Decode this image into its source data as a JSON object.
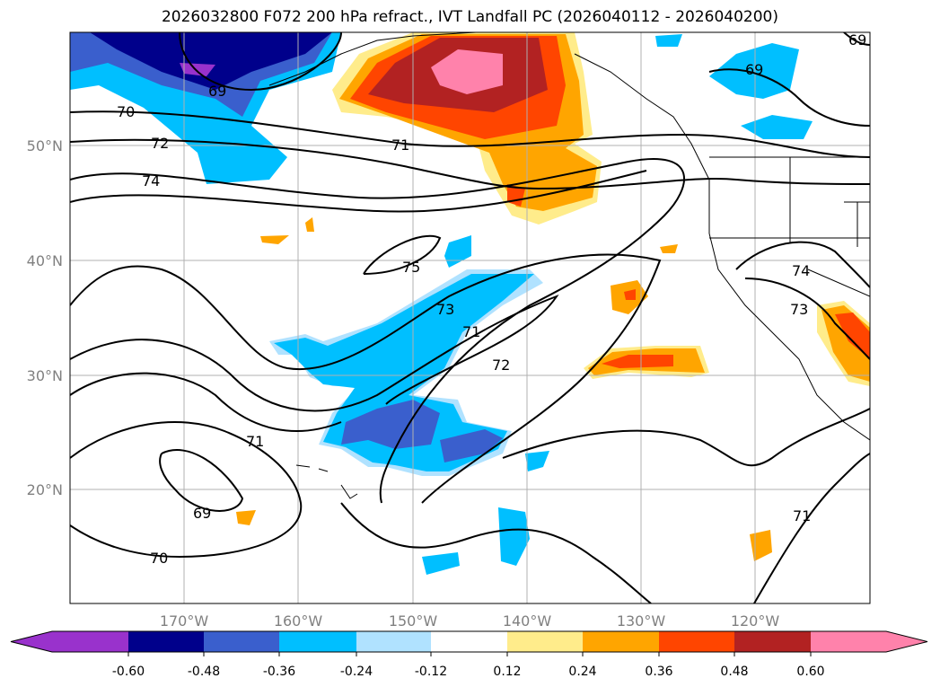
{
  "title": "2026032800 F072 200 hPa refract., IVT Landfall PC (2026040112 - 2026040200)",
  "map": {
    "lat_labels": [
      "50°N",
      "40°N",
      "30°N",
      "20°N"
    ],
    "lon_labels": [
      "170°W",
      "160°W",
      "150°W",
      "140°W",
      "130°W",
      "120°W"
    ],
    "contour_labels": [
      "69",
      "70",
      "72",
      "74",
      "71",
      "75",
      "73",
      "71",
      "72",
      "71",
      "69",
      "70",
      "69",
      "74",
      "73",
      "71",
      "69"
    ]
  },
  "colorbar": {
    "colors": [
      "#9932cc",
      "#00008b",
      "#3a5fcd",
      "#00bfff",
      "#b0e2ff",
      "#ffffff",
      "#ffec8b",
      "#ffa500",
      "#ff4500",
      "#b22222",
      "#ff82ab"
    ],
    "ticks": [
      "-0.60",
      "-0.48",
      "-0.36",
      "-0.24",
      "-0.12",
      "0.12",
      "0.24",
      "0.36",
      "0.48",
      "0.60"
    ]
  }
}
